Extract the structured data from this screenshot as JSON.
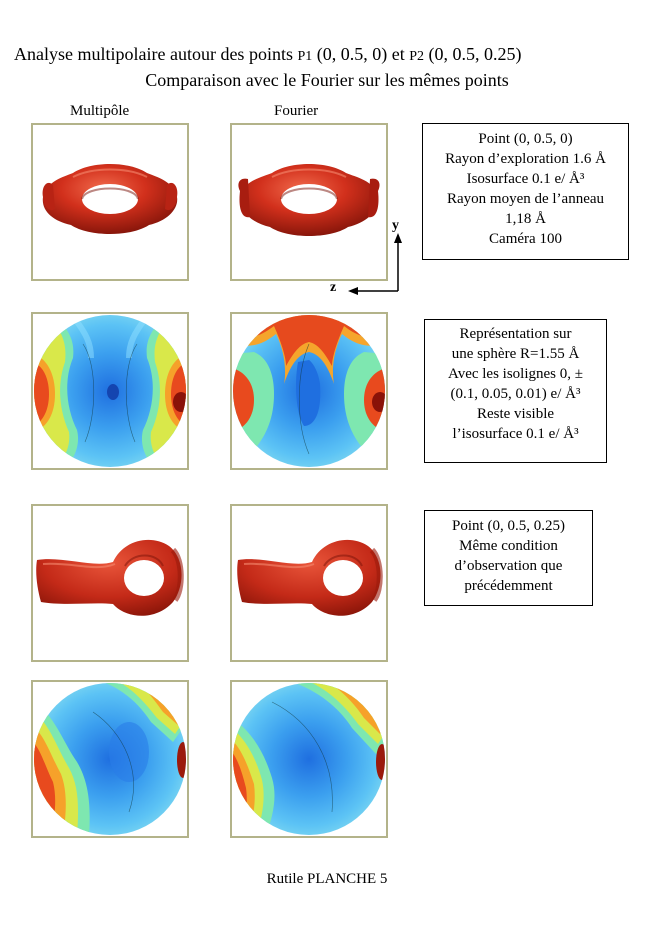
{
  "title": {
    "line1_prefix": "Analyse multipolaire  autour des points ",
    "p1_label": "P1",
    "p1_coords": " (0, 0.5, 0) et ",
    "p2_label": "P2",
    "p2_coords": " (0, 0.5, 0.25)",
    "line2": "Comparaison avec le Fourier sur les mêmes points"
  },
  "columns": {
    "left": "Multipôle",
    "right": "Fourier"
  },
  "axes": {
    "y": "y",
    "z": "z"
  },
  "box1": {
    "lines": [
      "Point (0, 0.5, 0)",
      "Rayon d’exploration 1.6 Å",
      "Isosurface 0.1 e/ Å³",
      "Rayon moyen de l’anneau",
      "1,18 Å",
      "Caméra 100"
    ]
  },
  "box2": {
    "lines": [
      "Représentation  sur",
      "une sphère  R=1.55 Å",
      "Avec les isolignes 0, ±",
      "(0.1, 0.05, 0.01) e/ Å³",
      "Reste visible",
      "l’isosurface 0.1 e/ Å³"
    ]
  },
  "box3": {
    "lines": [
      "Point (0, 0.5, 0.25)",
      "Même condition",
      "d’observation que",
      "précédemment"
    ]
  },
  "footer": "Rutile  PLANCHE 5",
  "colors": {
    "frame_border": "#b3b38a",
    "surface_red": "#c8281a",
    "map_blue": "#2f9be8"
  }
}
